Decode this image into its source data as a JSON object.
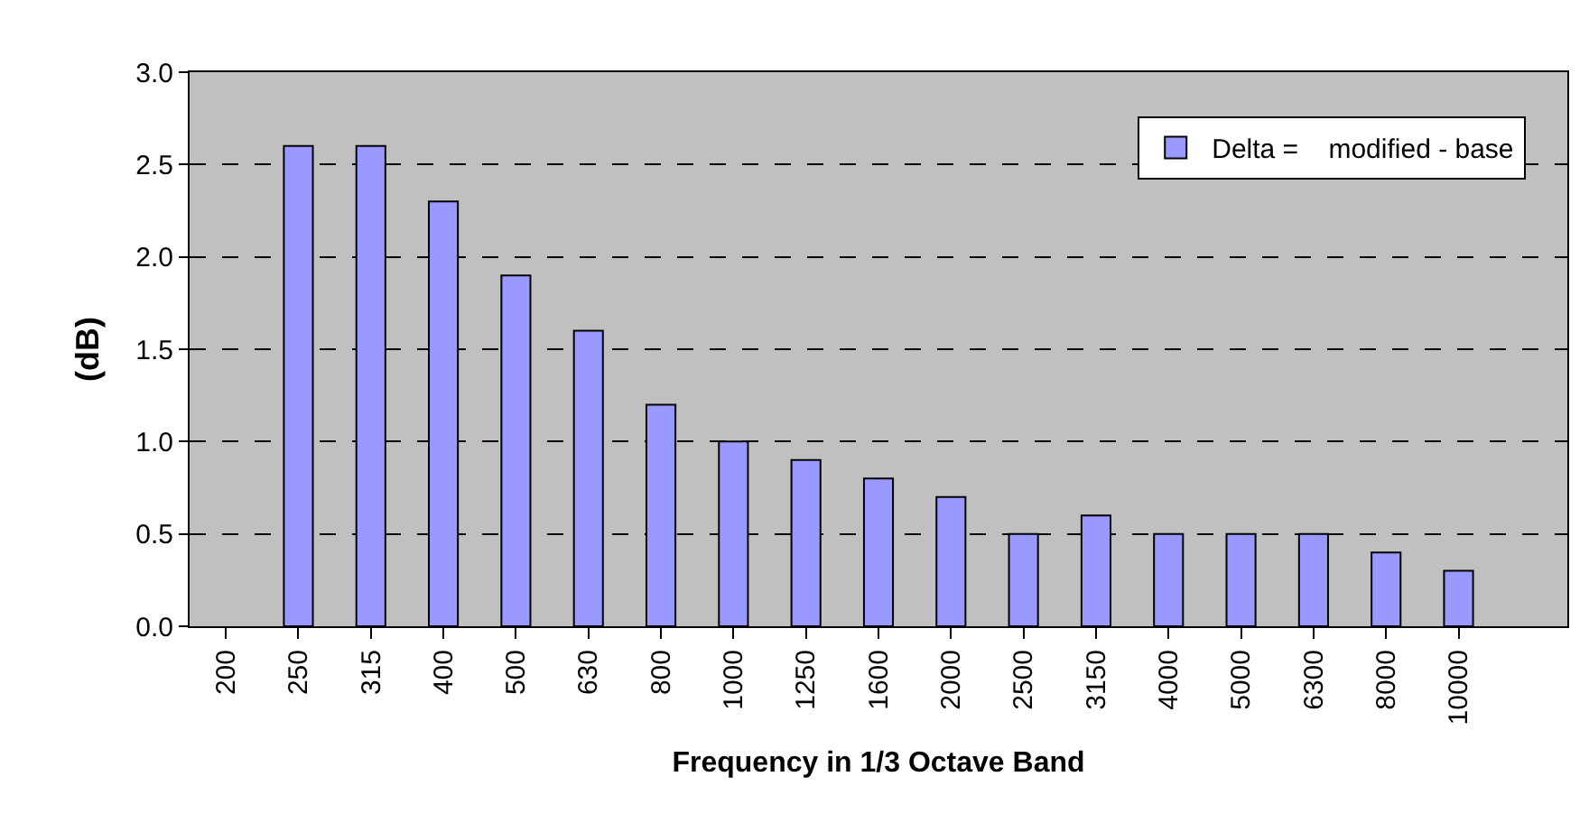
{
  "chart_data": {
    "type": "bar",
    "xlabel": "Frequency in 1/3 Octave Band",
    "ylabel": "(dB)",
    "categories": [
      "200",
      "250",
      "315",
      "400",
      "500",
      "630",
      "800",
      "1000",
      "1250",
      "1600",
      "2000",
      "2500",
      "3150",
      "4000",
      "5000",
      "6300",
      "8000",
      "10000",
      null
    ],
    "series": [
      {
        "name": "Delta =    modified - base",
        "color": "#9999ff",
        "values": [
          null,
          2.6,
          2.6,
          2.3,
          1.9,
          1.6,
          1.2,
          1.0,
          0.9,
          0.8,
          0.7,
          0.5,
          0.6,
          0.5,
          0.5,
          0.5,
          0.4,
          0.3,
          null
        ]
      }
    ],
    "ylim": [
      0,
      3
    ],
    "yticks": [
      {
        "value": 0,
        "label": "0.0"
      },
      {
        "value": 0.5,
        "label": "0.5"
      },
      {
        "value": 1,
        "label": "1.0"
      },
      {
        "value": 1.5,
        "label": "1.5"
      },
      {
        "value": 2,
        "label": "2.0"
      },
      {
        "value": 2.5,
        "label": "2.5"
      },
      {
        "value": 3,
        "label": "3.0"
      }
    ],
    "grid": "y",
    "legend": "top right"
  }
}
